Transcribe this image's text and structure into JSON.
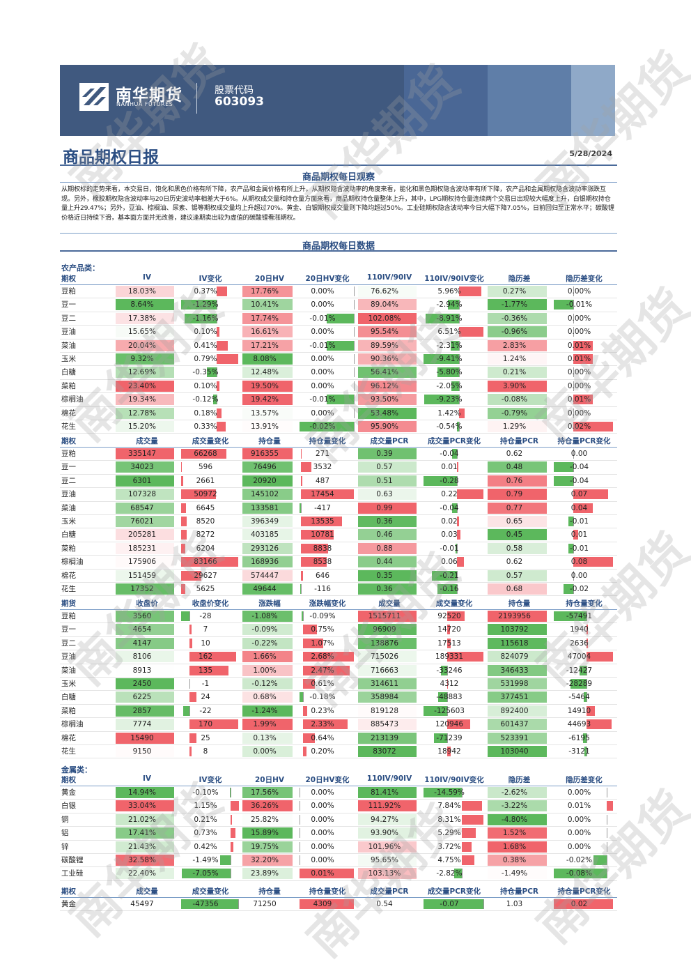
{
  "header": {
    "brand_cn": "南华期货",
    "brand_en": "NANHUA FUTURES",
    "stock_label": "股票代码",
    "stock_code": "603093"
  },
  "title": "商品期权日报",
  "date": "5/28/2024",
  "section_observe": "商品期权每日观察",
  "summary": "从期权标的走势来看，本交易日，饱化和黑色价格有所下降，农产品和金属价格有所上升。从期权隐含波动率的角度来看，能化和黑色期权隐含波动率有所下降，农产品和金属期权隐含波动率涨跌互现。另外，橡胶期权隐含波动率与20日历史波动率相差大于6%。从期权成交量和持仓量方面来看，商品期权持仓量整体上升，其中，LPG期权持仓量连续两个交易日出现较大幅度上升，白银期权持仓量上升29.47%；另外，豆油、棕榈油、尿素、锡等期权成交量均上升超过70%。黄金、白银期权成交量则下降均超过50%。工业硅期权隐含波动率今日大幅下降7.05%，日前回归至正常水平；碳酸锂价格近日持续下滑，基本面方面并无改善，建议逢期卖出较为虚值的碳酸锂看涨期权。",
  "section_data": "商品期权每日数据",
  "agri_label": "农产品类：",
  "metal_label": "金属类：",
  "colors": {
    "red": "#f0646b",
    "green": "#5cb85c",
    "lightred": "#fbd3d5",
    "lightgreen": "#c8e6c9"
  },
  "watermark": "南华期货",
  "iv_headers": [
    "期权",
    "IV",
    "IV变化",
    "20日HV",
    "20日HV变化",
    "110IV/90IV",
    "110IV/90IV变化",
    "隐历差",
    "隐历差变化"
  ],
  "vol_headers": [
    "期权",
    "成交量",
    "成交量变化",
    "持仓量",
    "持仓量变化",
    "成交量PCR",
    "成交量PCR变化",
    "持仓量PCR",
    "持仓量PCR变化"
  ],
  "fut_headers": [
    "期货",
    "收盘价",
    "收盘价变化",
    "涨跌幅",
    "涨跌幅变化",
    "成交量",
    "成交量变化",
    "持仓量",
    "持仓量变化"
  ],
  "agri_iv": [
    [
      "豆粕",
      "18.03%",
      "0.37%",
      "17.76%",
      "0.00%",
      "76.62%",
      "5.96%",
      "0.27%",
      "0.00%"
    ],
    [
      "豆一",
      "8.64%",
      "-1.29%",
      "10.41%",
      "0.00%",
      "89.04%",
      "-2.94%",
      "-1.77%",
      "-0.01%"
    ],
    [
      "豆二",
      "17.38%",
      "-1.16%",
      "17.74%",
      "-0.01%",
      "102.08%",
      "-8.91%",
      "-0.36%",
      "0.00%"
    ],
    [
      "豆油",
      "15.65%",
      "0.10%",
      "16.61%",
      "0.00%",
      "95.54%",
      "6.51%",
      "-0.96%",
      "0.00%"
    ],
    [
      "菜油",
      "20.04%",
      "0.41%",
      "17.21%",
      "-0.01%",
      "89.59%",
      "-2.31%",
      "2.83%",
      "0.01%"
    ],
    [
      "玉米",
      "9.32%",
      "0.79%",
      "8.08%",
      "0.00%",
      "90.36%",
      "-9.41%",
      "1.24%",
      "0.01%"
    ],
    [
      "白糖",
      "12.69%",
      "-0.35%",
      "12.48%",
      "0.00%",
      "56.41%",
      "-5.80%",
      "0.21%",
      "0.00%"
    ],
    [
      "菜粕",
      "23.40%",
      "0.10%",
      "19.50%",
      "0.00%",
      "96.12%",
      "-2.05%",
      "3.90%",
      "0.00%"
    ],
    [
      "棕榈油",
      "19.34%",
      "-0.12%",
      "19.42%",
      "-0.01%",
      "93.50%",
      "-9.23%",
      "-0.08%",
      "0.01%"
    ],
    [
      "棉花",
      "12.78%",
      "0.18%",
      "13.57%",
      "0.00%",
      "53.48%",
      "1.42%",
      "-0.79%",
      "0.00%"
    ],
    [
      "花生",
      "15.20%",
      "0.33%",
      "13.91%",
      "-0.02%",
      "95.90%",
      "-0.54%",
      "1.29%",
      "0.02%"
    ]
  ],
  "agri_vol": [
    [
      "豆粕",
      "335147",
      "66268",
      "916355",
      "271",
      "0.39",
      "-0.04",
      "0.62",
      "0.00"
    ],
    [
      "豆一",
      "34023",
      "596",
      "76496",
      "3532",
      "0.57",
      "0.01",
      "0.48",
      "-0.04"
    ],
    [
      "豆二",
      "6301",
      "2661",
      "20920",
      "487",
      "0.51",
      "-0.28",
      "0.76",
      "-0.04"
    ],
    [
      "豆油",
      "107328",
      "50972",
      "145102",
      "17454",
      "0.63",
      "0.22",
      "0.79",
      "0.07"
    ],
    [
      "菜油",
      "68547",
      "6645",
      "133581",
      "-417",
      "0.99",
      "-0.04",
      "0.77",
      "0.04"
    ],
    [
      "玉米",
      "76021",
      "8520",
      "396349",
      "13535",
      "0.36",
      "0.02",
      "0.65",
      "-0.01"
    ],
    [
      "白糖",
      "205281",
      "8272",
      "403185",
      "10781",
      "0.46",
      "0.03",
      "0.45",
      "0.01"
    ],
    [
      "菜粕",
      "185231",
      "6204",
      "293126",
      "8838",
      "0.88",
      "-0.01",
      "0.58",
      "-0.01"
    ],
    [
      "棕榈油",
      "175906",
      "83166",
      "168936",
      "8538",
      "0.44",
      "0.06",
      "0.62",
      "0.08"
    ],
    [
      "棉花",
      "151459",
      "29627",
      "574447",
      "646",
      "0.35",
      "-0.21",
      "0.57",
      "0.00"
    ],
    [
      "花生",
      "17352",
      "5625",
      "49644",
      "-116",
      "0.36",
      "-0.16",
      "0.68",
      "-0.02"
    ]
  ],
  "agri_fut": [
    [
      "豆粕",
      "3560",
      "-28",
      "-1.08%",
      "-0.09%",
      "1515711",
      "92520",
      "2193956",
      "-57491"
    ],
    [
      "豆一",
      "4654",
      "7",
      "-0.09%",
      "0.75%",
      "96909",
      "14720",
      "103792",
      "1940"
    ],
    [
      "豆二",
      "4147",
      "10",
      "-0.22%",
      "1.07%",
      "138876",
      "17513",
      "115618",
      "2636"
    ],
    [
      "豆油",
      "8106",
      "162",
      "1.66%",
      "2.68%",
      "715026",
      "189331",
      "824079",
      "47004"
    ],
    [
      "菜油",
      "8913",
      "135",
      "1.00%",
      "2.47%",
      "716663",
      "-33246",
      "346433",
      "-12427"
    ],
    [
      "玉米",
      "2450",
      "-1",
      "-0.12%",
      "0.61%",
      "314611",
      "4312",
      "531998",
      "-28289"
    ],
    [
      "白糖",
      "6225",
      "24",
      "0.68%",
      "-0.18%",
      "358984",
      "-48883",
      "377451",
      "-5464"
    ],
    [
      "菜粕",
      "2857",
      "-22",
      "-1.24%",
      "0.23%",
      "819128",
      "-125603",
      "892400",
      "14910"
    ],
    [
      "棕榈油",
      "7774",
      "170",
      "1.99%",
      "2.33%",
      "885473",
      "120946",
      "601437",
      "44693"
    ],
    [
      "棉花",
      "15490",
      "25",
      "0.13%",
      "0.64%",
      "213139",
      "-71239",
      "523391",
      "-6195"
    ],
    [
      "花生",
      "9150",
      "8",
      "0.00%",
      "0.20%",
      "83072",
      "18942",
      "103040",
      "-3121"
    ]
  ],
  "metal_iv": [
    [
      "黄金",
      "14.94%",
      "-0.10%",
      "17.56%",
      "0.00%",
      "81.41%",
      "-14.59%",
      "-2.62%",
      "0.00%"
    ],
    [
      "白银",
      "33.04%",
      "1.15%",
      "36.26%",
      "0.00%",
      "111.92%",
      "7.84%",
      "-3.22%",
      "0.01%"
    ],
    [
      "铜",
      "21.02%",
      "0.21%",
      "25.82%",
      "0.00%",
      "94.27%",
      "8.31%",
      "-4.80%",
      "0.00%"
    ],
    [
      "铝",
      "17.41%",
      "0.73%",
      "15.89%",
      "0.00%",
      "93.90%",
      "5.29%",
      "1.52%",
      "0.00%"
    ],
    [
      "锌",
      "21.43%",
      "0.42%",
      "19.75%",
      "0.00%",
      "101.96%",
      "3.72%",
      "1.68%",
      "0.00%"
    ],
    [
      "碳酸锂",
      "32.58%",
      "-1.49%",
      "32.20%",
      "0.00%",
      "95.65%",
      "4.75%",
      "0.38%",
      "-0.02%"
    ],
    [
      "工业硅",
      "22.40%",
      "-7.05%",
      "23.89%",
      "0.01%",
      "103.13%",
      "-2.82%",
      "-1.49%",
      "-0.08%"
    ]
  ],
  "metal_vol": [
    [
      "黄金",
      "45497",
      "-47356",
      "71250",
      "4309",
      "0.54",
      "-0.07",
      "1.03",
      "0.02"
    ]
  ]
}
